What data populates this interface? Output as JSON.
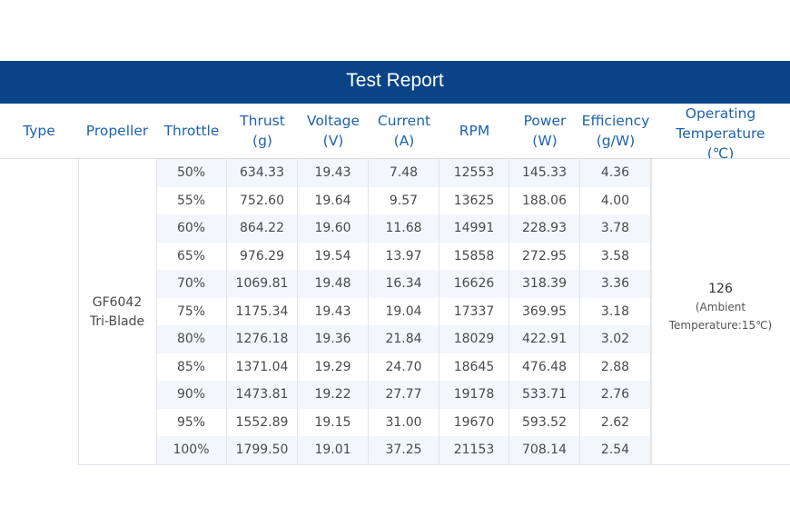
{
  "report": {
    "title": "Test Report",
    "headers": {
      "type": "Type",
      "propeller": "Propeller",
      "throttle": "Throttle",
      "thrust": "Thrust\n(g)",
      "voltage": "Voltage\n(V)",
      "current": "Current\n(A)",
      "rpm": "RPM",
      "power": "Power\n(W)",
      "efficiency": "Efficiency\n(g/W)",
      "operating_temperature": "Operating\nTemperature\n(℃)"
    },
    "propeller": "GF6042\nTri-Blade",
    "operating_temperature": {
      "value": "126",
      "note": "(Ambient\nTemperature:15℃)"
    },
    "rows": [
      [
        "50%",
        "634.33",
        "19.43",
        "7.48",
        "12553",
        "145.33",
        "4.36"
      ],
      [
        "55%",
        "752.60",
        "19.64",
        "9.57",
        "13625",
        "188.06",
        "4.00"
      ],
      [
        "60%",
        "864.22",
        "19.60",
        "11.68",
        "14991",
        "228.93",
        "3.78"
      ],
      [
        "65%",
        "976.29",
        "19.54",
        "13.97",
        "15858",
        "272.95",
        "3.58"
      ],
      [
        "70%",
        "1069.81",
        "19.48",
        "16.34",
        "16626",
        "318.39",
        "3.36"
      ],
      [
        "75%",
        "1175.34",
        "19.43",
        "19.04",
        "17337",
        "369.95",
        "3.18"
      ],
      [
        "80%",
        "1276.18",
        "19.36",
        "21.84",
        "18029",
        "422.91",
        "3.02"
      ],
      [
        "85%",
        "1371.04",
        "19.29",
        "24.70",
        "18645",
        "476.48",
        "2.88"
      ],
      [
        "90%",
        "1473.81",
        "19.22",
        "27.77",
        "19178",
        "533.71",
        "2.76"
      ],
      [
        "95%",
        "1552.89",
        "19.15",
        "31.00",
        "19670",
        "593.52",
        "2.62"
      ],
      [
        "100%",
        "1799.50",
        "19.01",
        "37.25",
        "21153",
        "708.14",
        "2.54"
      ]
    ]
  },
  "colors": {
    "title_bar": "#0a4487",
    "header_text": "#1e62ad",
    "row_alt": "#f3f6fa"
  }
}
